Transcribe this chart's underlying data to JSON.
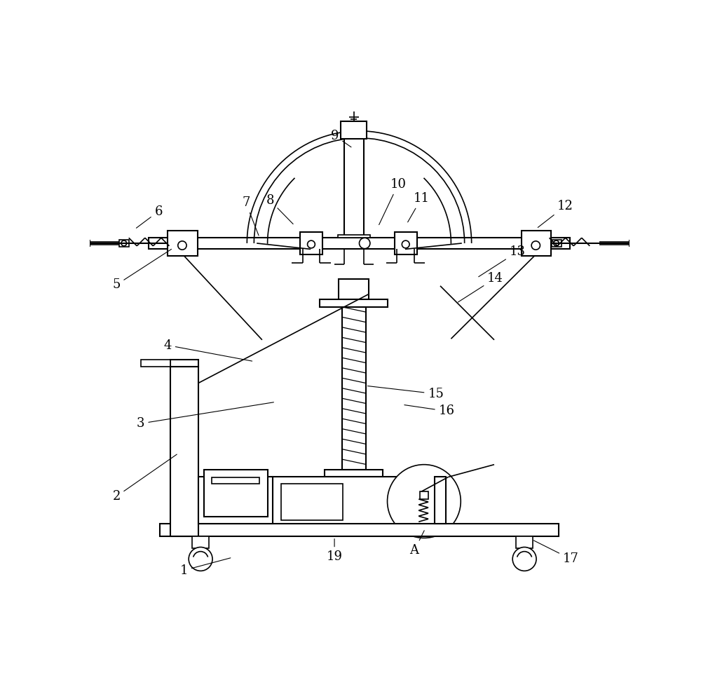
{
  "bg_color": "#ffffff",
  "line_color": "#000000",
  "fig_width": 10.0,
  "fig_height": 9.6,
  "dpi": 100
}
